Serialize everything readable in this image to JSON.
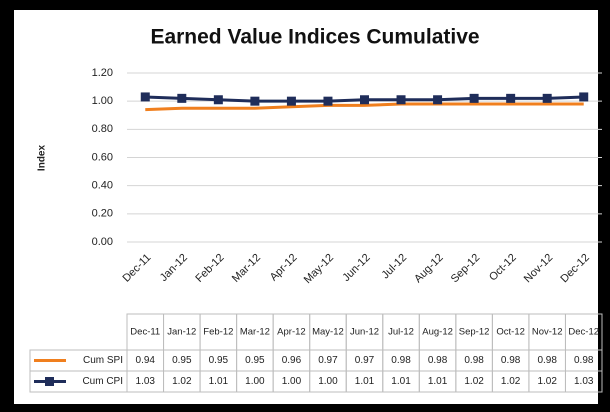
{
  "chart_data": {
    "type": "line",
    "title": "Earned Value Indices Cumulative",
    "y_label": "Index",
    "categories": [
      "Dec-11",
      "Jan-12",
      "Feb-12",
      "Mar-12",
      "Apr-12",
      "May-12",
      "Jun-12",
      "Jul-12",
      "Aug-12",
      "Sep-12",
      "Oct-12",
      "Nov-12",
      "Dec-12"
    ],
    "series": [
      {
        "name": "Cum SPI",
        "color": "#f07f1e",
        "marker": "none",
        "values": [
          0.94,
          0.95,
          0.95,
          0.95,
          0.96,
          0.97,
          0.97,
          0.98,
          0.98,
          0.98,
          0.98,
          0.98,
          0.98
        ],
        "value_labels": [
          "0.94",
          "0.95",
          "0.95",
          "0.95",
          "0.96",
          "0.97",
          "0.97",
          "0.98",
          "0.98",
          "0.98",
          "0.98",
          "0.98",
          "0.98"
        ]
      },
      {
        "name": "Cum CPI",
        "color": "#1f2d5a",
        "marker": "square",
        "values": [
          1.03,
          1.02,
          1.01,
          1.0,
          1.0,
          1.0,
          1.01,
          1.01,
          1.01,
          1.02,
          1.02,
          1.02,
          1.03
        ],
        "value_labels": [
          "1.03",
          "1.02",
          "1.01",
          "1.00",
          "1.00",
          "1.00",
          "1.01",
          "1.01",
          "1.01",
          "1.02",
          "1.02",
          "1.02",
          "1.03"
        ]
      }
    ],
    "ylim": [
      0,
      1.2
    ],
    "yticks": [
      {
        "value": 0,
        "label": "0.00"
      },
      {
        "value": 0.2,
        "label": "0.20"
      },
      {
        "value": 0.4,
        "label": "0.40"
      },
      {
        "value": 0.6,
        "label": "0.60"
      },
      {
        "value": 0.8,
        "label": "0.80"
      },
      {
        "value": 1,
        "label": "1.00"
      },
      {
        "value": 1.2,
        "label": "1.20"
      }
    ],
    "grid": true
  }
}
